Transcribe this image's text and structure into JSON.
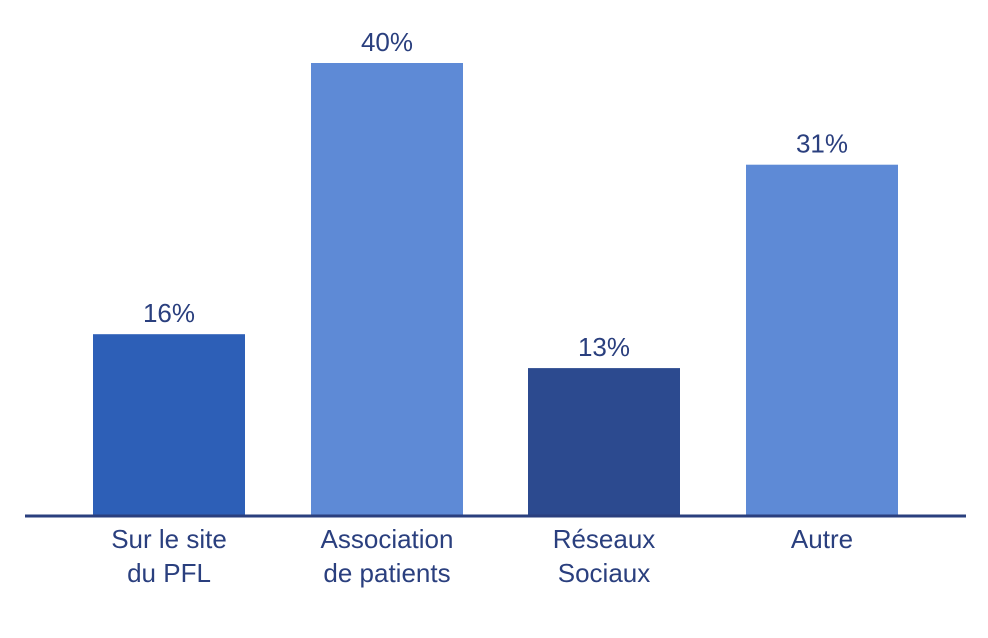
{
  "chart_data": {
    "type": "bar",
    "categories": [
      [
        "Sur le site",
        "du PFL"
      ],
      [
        "Association",
        "de patients"
      ],
      [
        "Réseaux",
        "Sociaux"
      ],
      [
        "Autre"
      ]
    ],
    "values": [
      16,
      40,
      13,
      31
    ],
    "value_labels": [
      "16%",
      "40%",
      "13%",
      "31%"
    ],
    "bar_colors": [
      "#2d5fb7",
      "#5e8ad6",
      "#2c4a8f",
      "#5e8ad6"
    ],
    "axis_color": "#2a3f7e",
    "text_color": "#2a3f7e",
    "title": "",
    "xlabel": "",
    "ylabel": "",
    "ylim": [
      0,
      40
    ],
    "grid": false,
    "legend": "none"
  }
}
